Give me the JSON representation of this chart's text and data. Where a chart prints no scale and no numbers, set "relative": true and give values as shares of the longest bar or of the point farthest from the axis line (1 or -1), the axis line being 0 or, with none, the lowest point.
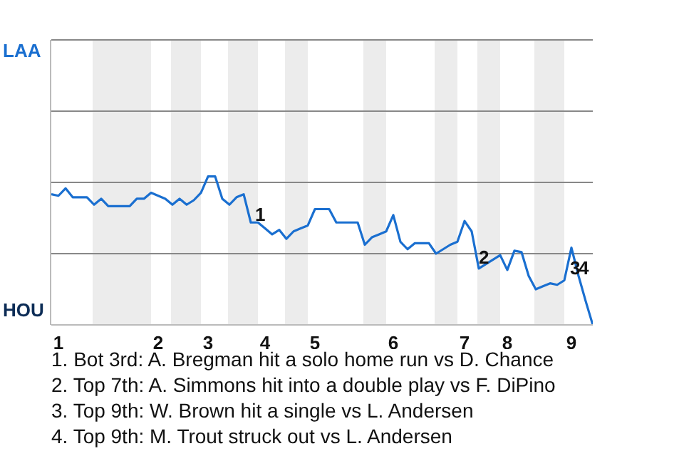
{
  "chart_data": {
    "type": "line",
    "relative": true,
    "categories": [
      null,
      "1",
      null,
      null,
      null,
      null,
      null,
      null,
      null,
      null,
      null,
      null,
      null,
      null,
      null,
      "2",
      null,
      null,
      null,
      null,
      null,
      null,
      "3",
      null,
      null,
      null,
      null,
      null,
      null,
      null,
      "4",
      null,
      null,
      null,
      null,
      null,
      null,
      "5",
      null,
      null,
      null,
      null,
      null,
      null,
      null,
      null,
      null,
      null,
      "6",
      null,
      null,
      null,
      null,
      null,
      null,
      null,
      null,
      null,
      "7",
      null,
      null,
      null,
      null,
      null,
      "8",
      null,
      null,
      null,
      null,
      null,
      null,
      null,
      null,
      "9",
      null,
      null,
      null
    ],
    "series": [
      {
        "color": "#1a6fd0",
        "values": [
          0.88,
          0.87,
          0.92,
          0.86,
          0.86,
          0.86,
          0.81,
          0.85,
          0.8,
          0.8,
          0.8,
          0.8,
          0.85,
          0.85,
          0.89,
          0.87,
          0.85,
          0.81,
          0.85,
          0.81,
          0.84,
          0.89,
          1,
          1,
          0.85,
          0.81,
          0.86,
          0.88,
          0.69,
          0.69,
          0.65,
          0.61,
          0.64,
          0.58,
          0.63,
          0.65,
          0.67,
          0.78,
          0.78,
          0.78,
          0.69,
          0.69,
          0.69,
          0.69,
          0.54,
          0.59,
          0.61,
          0.63,
          0.74,
          0.56,
          0.51,
          0.55,
          0.55,
          0.55,
          0.48,
          0.51,
          0.54,
          0.56,
          0.7,
          0.63,
          0.38,
          0.41,
          0.44,
          0.47,
          0.37,
          0.5,
          0.49,
          0.33,
          0.24,
          0.26,
          0.28,
          0.27,
          0.3,
          0.52,
          0.33,
          0.16,
          0
        ]
      }
    ],
    "marker": "none",
    "ref_lines": [
      {
        "axis": "y",
        "value": 0.48,
        "color": "#888888"
      },
      {
        "axis": "y",
        "value": 0.96,
        "color": "#888888"
      },
      {
        "axis": "y",
        "value": 1.44,
        "color": "#888888"
      },
      {
        "axis": "y",
        "value": 1.92,
        "color": "#888888"
      }
    ],
    "annotations": [
      "LAA",
      "HOU",
      {
        "text": "1",
        "y": 0.72
      },
      {
        "text": "2",
        "y": 0.43
      },
      {
        "text": "3",
        "y": 0.36
      },
      {
        "text": "4",
        "y": 0.36
      },
      "1. Bot 3rd: A. Bregman hit a solo home run vs D. Chance",
      "2. Top 7th: A. Simmons hit into a double play vs F. DiPino",
      "3. Top 9th: W. Brown hit a single vs L. Andersen",
      "4. Top 9th: M. Trout struck out vs L. Andersen"
    ]
  }
}
